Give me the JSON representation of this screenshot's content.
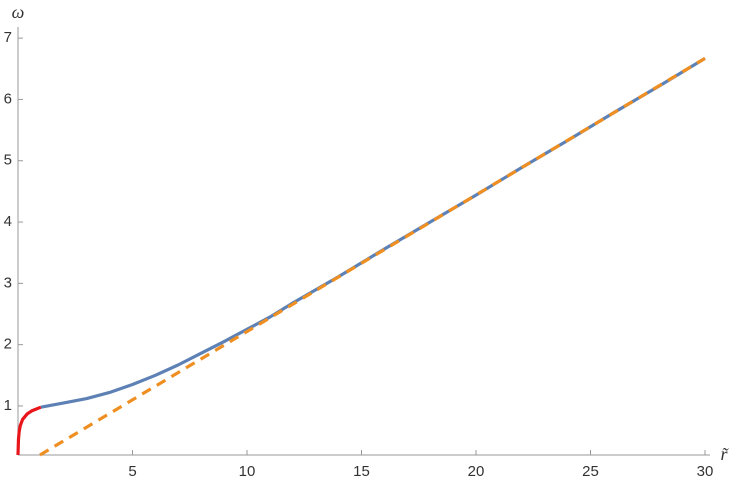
{
  "chart_data": {
    "type": "line",
    "x_label": "r̃",
    "y_label": "ω",
    "xlim": [
      0,
      30
    ],
    "ylim": [
      0.2,
      7.1
    ],
    "xticks": [
      5,
      10,
      15,
      20,
      25,
      30
    ],
    "yticks": [
      1,
      2,
      3,
      4,
      5,
      6,
      7
    ],
    "series": [
      {
        "color": "#e8151b",
        "dashed": false,
        "x": [
          0,
          0.02,
          0.05,
          0.1,
          0.2,
          0.4,
          0.6,
          0.8,
          1
        ],
        "values": [
          0.2,
          0.45,
          0.58,
          0.68,
          0.78,
          0.87,
          0.92,
          0.95,
          0.98
        ]
      },
      {
        "color": "#5e81b5",
        "dashed": false,
        "x": [
          1,
          2,
          3,
          4,
          5,
          6,
          7,
          8,
          9,
          10,
          11,
          12,
          14,
          16,
          18,
          20,
          22,
          24,
          26,
          28,
          30
        ],
        "values": [
          0.98,
          1.05,
          1.12,
          1.22,
          1.35,
          1.5,
          1.67,
          1.86,
          2.05,
          2.25,
          2.45,
          2.68,
          3.11,
          3.56,
          4.0,
          4.44,
          4.89,
          5.33,
          5.78,
          6.22,
          6.67
        ]
      },
      {
        "color": "#ef8f22",
        "dashed": true,
        "x": [
          0.96,
          30
        ],
        "values": [
          0.2,
          6.67
        ]
      }
    ]
  }
}
